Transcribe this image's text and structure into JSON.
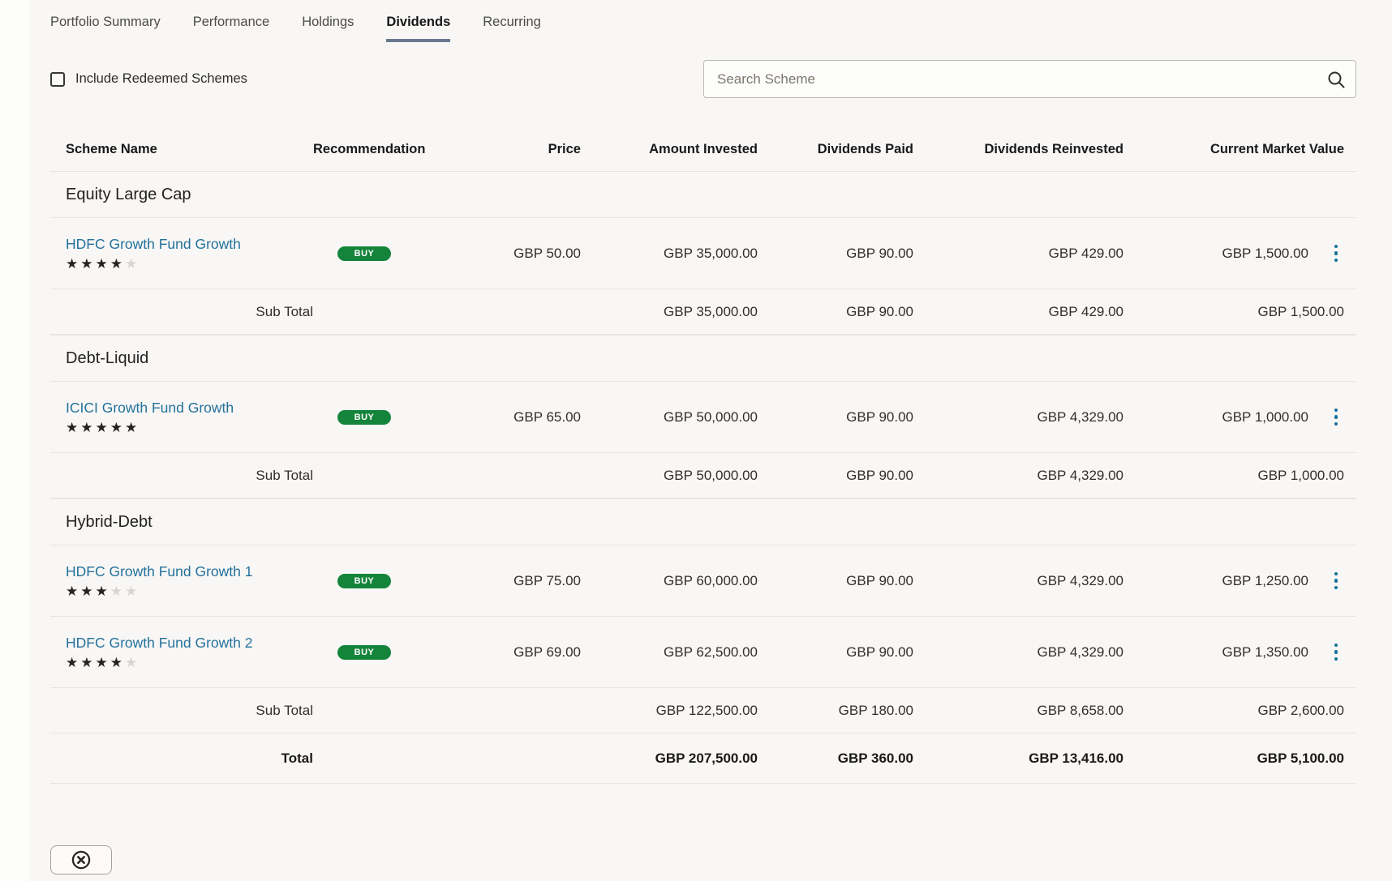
{
  "tabs": [
    {
      "label": "Portfolio Summary",
      "active": false
    },
    {
      "label": "Performance",
      "active": false
    },
    {
      "label": "Holdings",
      "active": false
    },
    {
      "label": "Dividends",
      "active": true
    },
    {
      "label": "Recurring",
      "active": false
    }
  ],
  "filters": {
    "checkbox_label": "Include Redeemed Schemes",
    "checkbox_checked": false,
    "search_placeholder": "Search Scheme"
  },
  "icons": {
    "search": "magnifier-icon",
    "row_actions": "kebab-vertical-icon",
    "close": "circled-x-icon"
  },
  "colors": {
    "accent_green": "#15843b",
    "link_blue": "#24719b",
    "action_blue": "#17719c",
    "tab_underline": "#68788f"
  },
  "table": {
    "columns": [
      "Scheme Name",
      "Recommendation",
      "Price",
      "Amount Invested",
      "Dividends Paid",
      "Dividends Reinvested",
      "Current Market Value"
    ],
    "groups": [
      {
        "name": "Equity Large Cap",
        "rows": [
          {
            "scheme": "HDFC Growth Fund Growth",
            "rating": 4,
            "recommendation": "BUY",
            "price": "GBP 50.00",
            "amount_invested": "GBP 35,000.00",
            "dividends_paid": "GBP 90.00",
            "dividends_reinvested": "GBP 429.00",
            "current_market_value": "GBP 1,500.00"
          }
        ],
        "sub_total": {
          "label": "Sub Total",
          "amount_invested": "GBP 35,000.00",
          "dividends_paid": "GBP 90.00",
          "dividends_reinvested": "GBP 429.00",
          "current_market_value": "GBP 1,500.00"
        }
      },
      {
        "name": "Debt-Liquid",
        "rows": [
          {
            "scheme": "ICICI Growth Fund Growth",
            "rating": 5,
            "recommendation": "BUY",
            "price": "GBP 65.00",
            "amount_invested": "GBP 50,000.00",
            "dividends_paid": "GBP 90.00",
            "dividends_reinvested": "GBP 4,329.00",
            "current_market_value": "GBP 1,000.00"
          }
        ],
        "sub_total": {
          "label": "Sub Total",
          "amount_invested": "GBP 50,000.00",
          "dividends_paid": "GBP 90.00",
          "dividends_reinvested": "GBP 4,329.00",
          "current_market_value": "GBP 1,000.00"
        }
      },
      {
        "name": "Hybrid-Debt",
        "rows": [
          {
            "scheme": "HDFC Growth Fund Growth 1",
            "rating": 3,
            "recommendation": "BUY",
            "price": "GBP 75.00",
            "amount_invested": "GBP 60,000.00",
            "dividends_paid": "GBP 90.00",
            "dividends_reinvested": "GBP 4,329.00",
            "current_market_value": "GBP 1,250.00"
          },
          {
            "scheme": "HDFC Growth Fund Growth 2",
            "rating": 4,
            "recommendation": "BUY",
            "price": "GBP 69.00",
            "amount_invested": "GBP 62,500.00",
            "dividends_paid": "GBP 90.00",
            "dividends_reinvested": "GBP 4,329.00",
            "current_market_value": "GBP 1,350.00"
          }
        ],
        "sub_total": {
          "label": "Sub Total",
          "amount_invested": "GBP 122,500.00",
          "dividends_paid": "GBP 180.00",
          "dividends_reinvested": "GBP 8,658.00",
          "current_market_value": "GBP 2,600.00"
        }
      }
    ],
    "total": {
      "label": "Total",
      "amount_invested": "GBP 207,500.00",
      "dividends_paid": "GBP 360.00",
      "dividends_reinvested": "GBP 13,416.00",
      "current_market_value": "GBP 5,100.00"
    }
  }
}
